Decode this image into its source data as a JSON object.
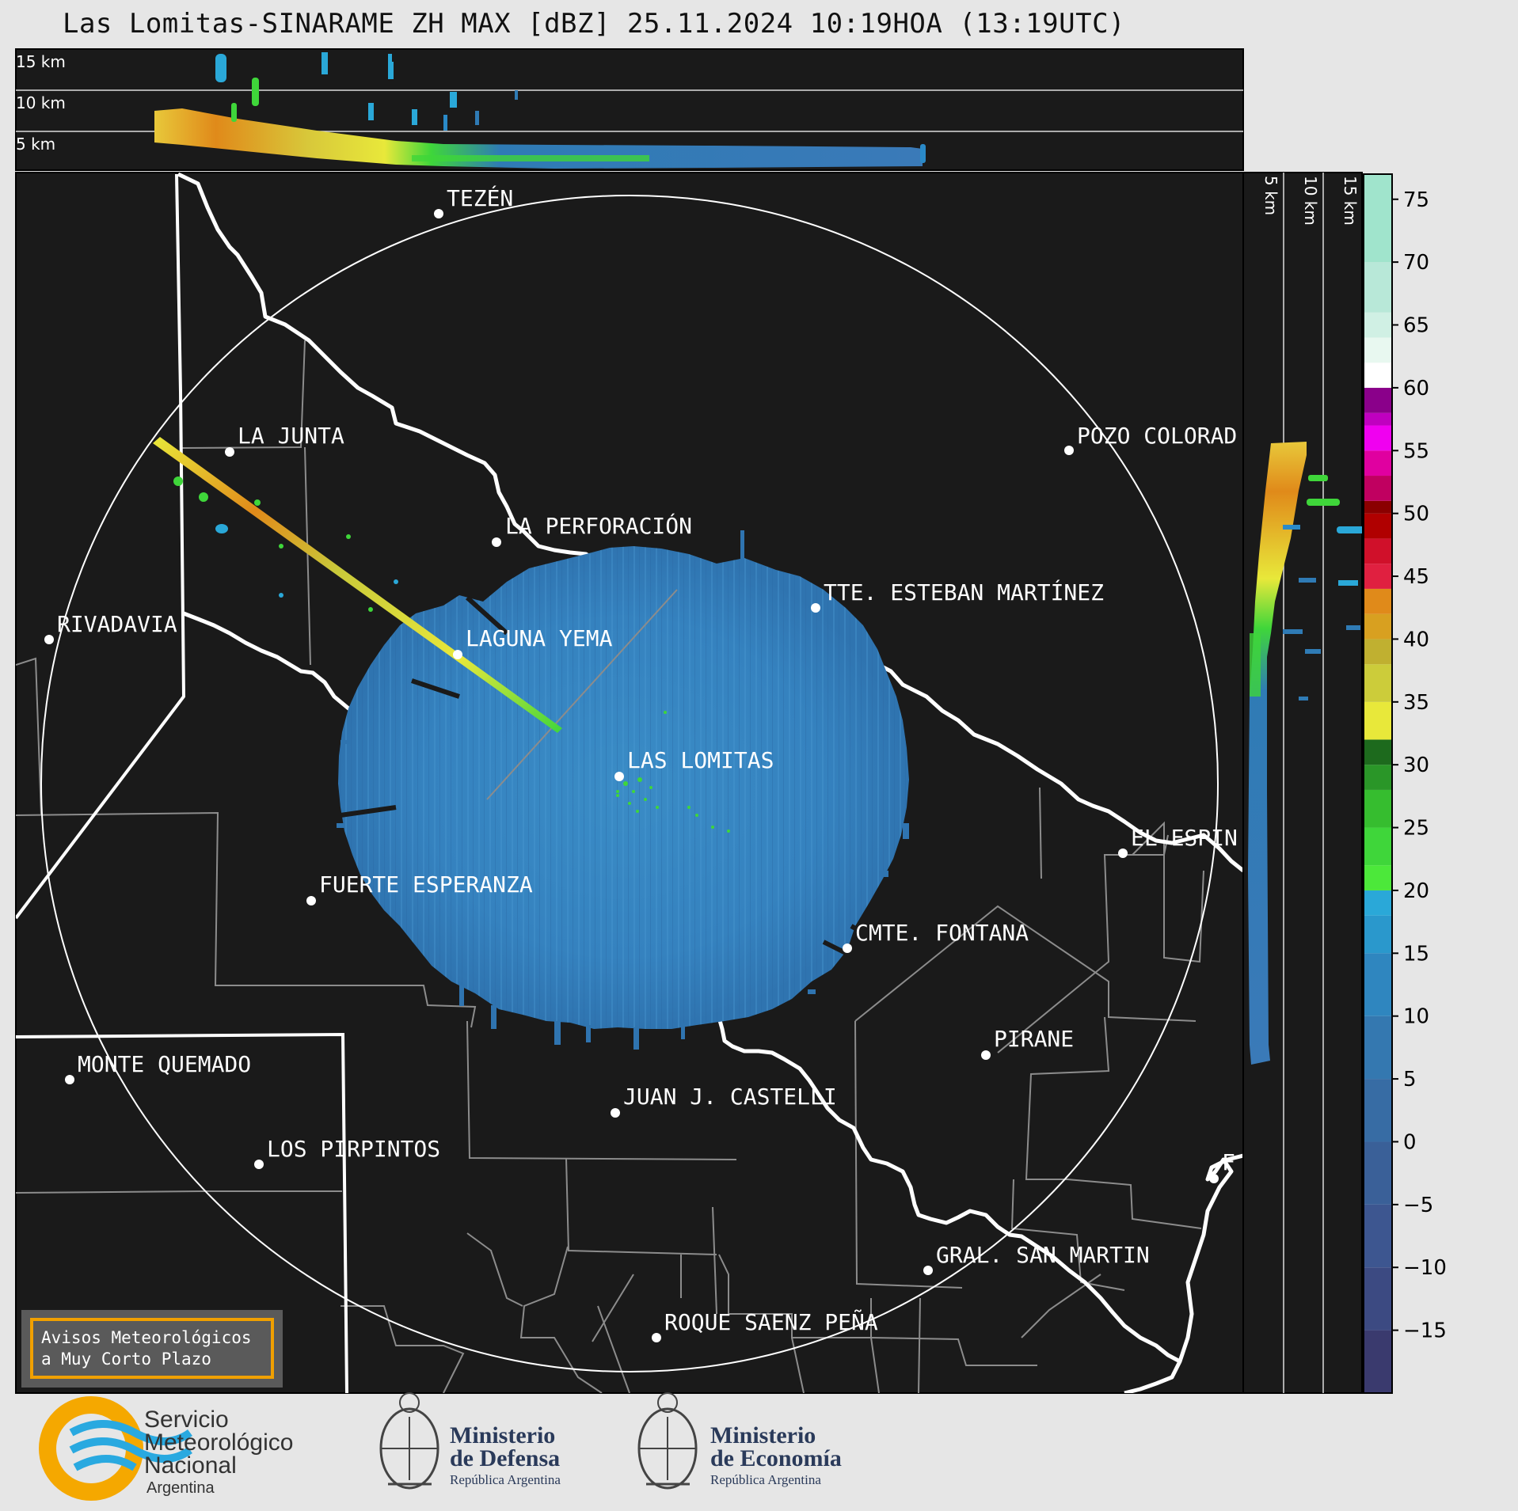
{
  "title": "Las Lomitas-SINARAME ZH MAX [dBZ] 25.11.2024 10:19HOA (13:19UTC)",
  "top_panel": {
    "height_labels": [
      "15 km",
      "10 km",
      "5 km"
    ]
  },
  "side_panel": {
    "height_labels": [
      "5 km",
      "10 km",
      "15 km"
    ]
  },
  "colorbar": {
    "unit": "dBZ",
    "ticks": [
      75,
      70,
      65,
      60,
      55,
      50,
      45,
      40,
      35,
      30,
      25,
      20,
      15,
      10,
      5,
      0,
      "−5",
      "−10",
      "−15"
    ],
    "colors": {
      "blue_low": "#3a3f78",
      "blue": "#2f7bb5",
      "cyan": "#2aa8d8",
      "green": "#3fd63a",
      "dark_green": "#1d6a1d",
      "yellow": "#e8e83a",
      "olive": "#b5b53a",
      "orange": "#e08a1a",
      "red": "#d0102a",
      "dark_red": "#8a0000",
      "magenta": "#d000d0",
      "purple": "#8a008a",
      "white": "#ffffff",
      "mint": "#8ee0c0"
    }
  },
  "places": [
    {
      "name": "TEZÉN"
    },
    {
      "name": "LA JUNTA"
    },
    {
      "name": "POZO COLORAD"
    },
    {
      "name": "LA PERFORACIÓN"
    },
    {
      "name": "TTE. ESTEBAN MARTÍNEZ"
    },
    {
      "name": "RIVADAVIA"
    },
    {
      "name": "LAGUNA YEMA"
    },
    {
      "name": "LAS LOMITAS"
    },
    {
      "name": "EL ESPIN"
    },
    {
      "name": "FUERTE ESPERANZA"
    },
    {
      "name": "CMTE. FONTANA"
    },
    {
      "name": "PIRANE"
    },
    {
      "name": "MONTE QUEMADO"
    },
    {
      "name": "JUAN J. CASTELLI"
    },
    {
      "name": "LOS PIRPINTOS"
    },
    {
      "name": "F"
    },
    {
      "name": "GRAL. SAN MARTIN"
    },
    {
      "name": "ROQUE SAENZ PEÑA"
    }
  ],
  "notice": {
    "line1": "Avisos Meteorológicos",
    "line2": "a Muy Corto Plazo"
  },
  "logos": {
    "smn": {
      "line1": "Servicio",
      "line2": "Meteorológico",
      "line3": "Nacional",
      "line4": "Argentina"
    },
    "defensa": {
      "line1": "Ministerio",
      "line2": "de Defensa",
      "line3": "República Argentina"
    },
    "economia": {
      "line1": "Ministerio",
      "line2": "de Economía",
      "line3": "República Argentina"
    }
  }
}
